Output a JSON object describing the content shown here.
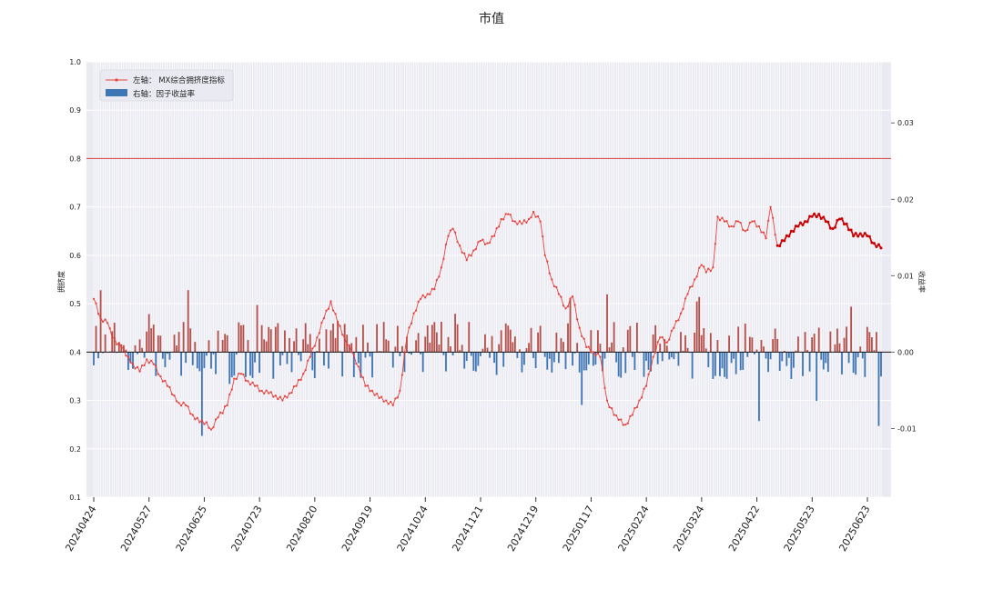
{
  "chart_data": {
    "type": "bar+line",
    "title": "市值",
    "ylabel_left": "拥挤度",
    "ylabel_right": "收益率",
    "ylim_left": [
      0.1,
      1.0
    ],
    "yticks_left": [
      "0.1",
      "0.2",
      "0.3",
      "0.4",
      "0.5",
      "0.6",
      "0.7",
      "0.8",
      "0.9",
      "1.0"
    ],
    "ylim_right": [
      -0.019,
      0.038
    ],
    "yticks_right": [
      {
        "value": -0.01,
        "label": "-0.01"
      },
      {
        "value": 0.0,
        "label": "0.00"
      },
      {
        "value": 0.01,
        "label": "0.01"
      },
      {
        "value": 0.02,
        "label": "0.02"
      },
      {
        "value": 0.03,
        "label": "0.03"
      }
    ],
    "threshold_line": 0.8,
    "x_tick_labels": [
      "20240424",
      "20240527",
      "20240625",
      "20240723",
      "20240820",
      "20240919",
      "20241024",
      "20241121",
      "20241219",
      "20250117",
      "20250224",
      "20250324",
      "20250422",
      "20250523",
      "20250623"
    ],
    "legend": {
      "position": "top-left",
      "line_label": "左轴： MX综合拥挤度指标",
      "bar_label": "右轴：因子收益率"
    },
    "colors": {
      "line": "#e8413b",
      "line_bold": "#cc0000",
      "bar_positive": "#b5514a",
      "bar_negative": "#3f76b4",
      "threshold": "#d9534f",
      "plot_bg": "#eaeaf2",
      "grid": "#ffffff"
    },
    "line_anchors": [
      [
        0,
        0.51
      ],
      [
        3,
        0.47
      ],
      [
        6,
        0.46
      ],
      [
        8,
        0.43
      ],
      [
        12,
        0.41
      ],
      [
        15,
        0.39
      ],
      [
        17,
        0.375
      ],
      [
        20,
        0.36
      ],
      [
        23,
        0.385
      ],
      [
        26,
        0.375
      ],
      [
        29,
        0.35
      ],
      [
        32,
        0.33
      ],
      [
        35,
        0.31
      ],
      [
        37,
        0.295
      ],
      [
        40,
        0.29
      ],
      [
        43,
        0.27
      ],
      [
        46,
        0.255
      ],
      [
        49,
        0.255
      ],
      [
        51,
        0.24
      ],
      [
        54,
        0.265
      ],
      [
        58,
        0.29
      ],
      [
        61,
        0.345
      ],
      [
        64,
        0.355
      ],
      [
        67,
        0.34
      ],
      [
        70,
        0.33
      ],
      [
        73,
        0.32
      ],
      [
        76,
        0.315
      ],
      [
        79,
        0.31
      ],
      [
        82,
        0.3
      ],
      [
        85,
        0.315
      ],
      [
        88,
        0.33
      ],
      [
        91,
        0.355
      ],
      [
        94,
        0.39
      ],
      [
        97,
        0.43
      ],
      [
        100,
        0.47
      ],
      [
        103,
        0.505
      ],
      [
        106,
        0.46
      ],
      [
        109,
        0.43
      ],
      [
        112,
        0.4
      ],
      [
        115,
        0.37
      ],
      [
        118,
        0.33
      ],
      [
        121,
        0.32
      ],
      [
        124,
        0.305
      ],
      [
        127,
        0.3
      ],
      [
        130,
        0.29
      ],
      [
        133,
        0.32
      ],
      [
        136,
        0.43
      ],
      [
        139,
        0.48
      ],
      [
        142,
        0.51
      ],
      [
        145,
        0.52
      ],
      [
        148,
        0.53
      ],
      [
        151,
        0.575
      ],
      [
        154,
        0.64
      ],
      [
        156,
        0.655
      ],
      [
        159,
        0.62
      ],
      [
        162,
        0.59
      ],
      [
        165,
        0.61
      ],
      [
        168,
        0.63
      ],
      [
        171,
        0.625
      ],
      [
        174,
        0.64
      ],
      [
        177,
        0.675
      ],
      [
        180,
        0.685
      ],
      [
        183,
        0.67
      ],
      [
        186,
        0.665
      ],
      [
        189,
        0.675
      ],
      [
        191,
        0.69
      ],
      [
        194,
        0.67
      ],
      [
        196,
        0.6
      ],
      [
        199,
        0.55
      ],
      [
        202,
        0.52
      ],
      [
        205,
        0.49
      ],
      [
        208,
        0.515
      ],
      [
        211,
        0.45
      ],
      [
        214,
        0.41
      ],
      [
        217,
        0.4
      ],
      [
        220,
        0.39
      ],
      [
        223,
        0.3
      ],
      [
        226,
        0.27
      ],
      [
        228,
        0.26
      ],
      [
        231,
        0.25
      ],
      [
        234,
        0.27
      ],
      [
        237,
        0.3
      ],
      [
        240,
        0.33
      ],
      [
        243,
        0.39
      ],
      [
        246,
        0.43
      ],
      [
        249,
        0.42
      ],
      [
        252,
        0.45
      ],
      [
        255,
        0.48
      ],
      [
        258,
        0.52
      ],
      [
        261,
        0.55
      ],
      [
        264,
        0.58
      ],
      [
        266,
        0.565
      ],
      [
        269,
        0.575
      ],
      [
        271,
        0.68
      ],
      [
        274,
        0.67
      ],
      [
        277,
        0.66
      ],
      [
        280,
        0.67
      ],
      [
        283,
        0.65
      ],
      [
        286,
        0.67
      ],
      [
        289,
        0.66
      ],
      [
        292,
        0.635
      ],
      [
        294,
        0.7
      ],
      [
        297,
        0.62
      ],
      [
        300,
        0.63
      ],
      [
        303,
        0.65
      ],
      [
        306,
        0.66
      ],
      [
        309,
        0.67
      ],
      [
        312,
        0.68
      ],
      [
        315,
        0.685
      ],
      [
        318,
        0.67
      ],
      [
        321,
        0.655
      ],
      [
        324,
        0.675
      ],
      [
        327,
        0.665
      ],
      [
        330,
        0.64
      ],
      [
        333,
        0.645
      ],
      [
        336,
        0.64
      ],
      [
        339,
        0.625
      ],
      [
        342,
        0.615
      ]
    ],
    "bar_seed": 7
  }
}
